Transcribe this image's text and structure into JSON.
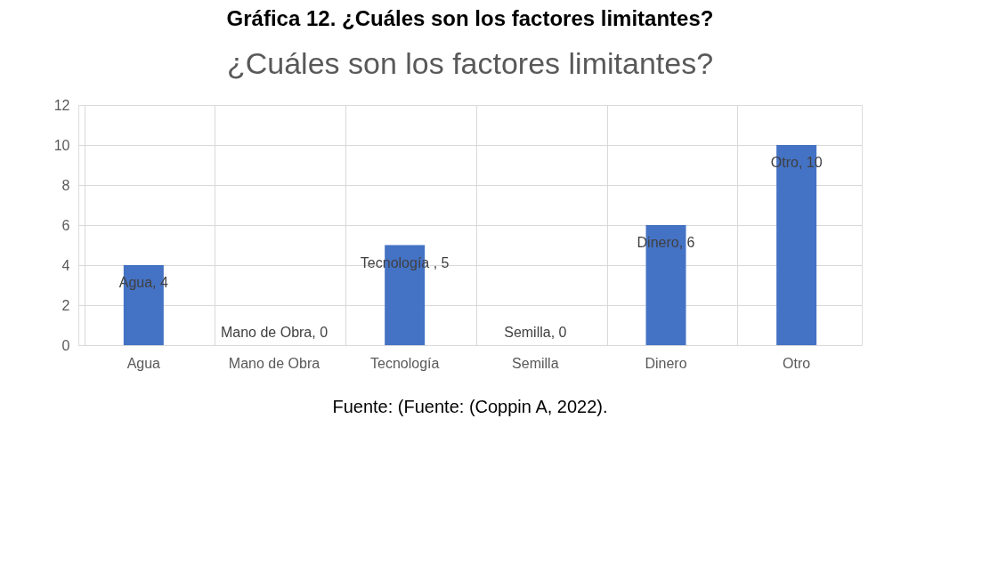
{
  "chart_data": {
    "type": "bar",
    "title": "Gráfica 12. ¿Cuáles son los factores limitantes?",
    "subtitle": "¿Cuáles son los factores limitantes?",
    "categories": [
      "Agua",
      "Mano de Obra",
      "Tecnología",
      "Semilla",
      "Dinero",
      "Otro"
    ],
    "values": [
      4,
      0,
      5,
      0,
      6,
      10
    ],
    "value_labels": [
      "Agua, 4",
      "Mano de Obra, 0",
      "Tecnología , 5",
      "Semilla, 0",
      "Dinero, 6",
      "Otro, 10"
    ],
    "color": "#4472c4",
    "ylim": [
      0,
      12
    ],
    "yticks": [
      0,
      2,
      4,
      6,
      8,
      10,
      12
    ],
    "grid": true,
    "annotations": [
      "Fuente: (Fuente: (Coppin A, 2022)."
    ]
  }
}
